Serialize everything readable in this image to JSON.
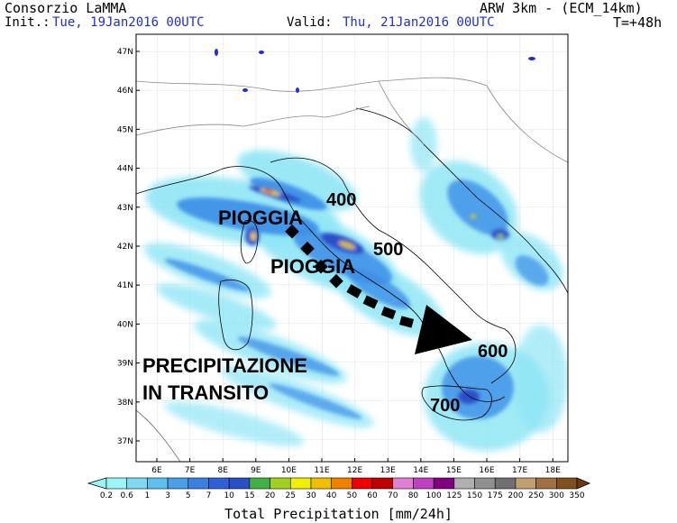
{
  "header": {
    "left_title": "Consorzio LaMMA",
    "init_label": "Init.:",
    "init_value": "Tue, 19Jan2016 00UTC",
    "valid_label": "Valid:",
    "valid_value": "Thu, 21Jan2016 00UTC",
    "model_title": "ARW 3km - (ECM_14km)",
    "forecast_step": "T=+48h"
  },
  "map": {
    "lat_ticks": [
      "47N",
      "46N",
      "45N",
      "44N",
      "43N",
      "42N",
      "41N",
      "40N",
      "39N",
      "38N",
      "37N"
    ],
    "lon_ticks": [
      "6E",
      "7E",
      "8E",
      "9E",
      "10E",
      "11E",
      "12E",
      "13E",
      "14E",
      "15E",
      "16E",
      "17E",
      "18E"
    ],
    "annotations": {
      "pioggia_1": "PIOGGIA",
      "pioggia_2": "PIOGGIA",
      "label_400": "400",
      "label_500": "500",
      "label_600": "600",
      "label_700": "700",
      "transit_line1": "PRECIPITAZIONE",
      "transit_line2": "IN TRANSITO"
    }
  },
  "colorbar": {
    "title": "Total Precipitation [mm/24h]",
    "labels": [
      "0.2",
      "0.6",
      "1",
      "3",
      "5",
      "7",
      "10",
      "15",
      "20",
      "25",
      "30",
      "40",
      "50",
      "60",
      "70",
      "80",
      "100",
      "125",
      "150",
      "175",
      "200",
      "250",
      "300",
      "350"
    ],
    "colors": [
      "#9cf5f5",
      "#7fd9f0",
      "#5fc0f0",
      "#4aa0e8",
      "#3a80e0",
      "#3060d8",
      "#2850c8",
      "#40b040",
      "#a0d020",
      "#f0f000",
      "#f0c000",
      "#f08000",
      "#f00000",
      "#c00000",
      "#e080d0",
      "#c040c0",
      "#800080",
      "#b0b0b0",
      "#909090",
      "#707070",
      "#c0a070",
      "#a07040",
      "#805020"
    ]
  }
}
